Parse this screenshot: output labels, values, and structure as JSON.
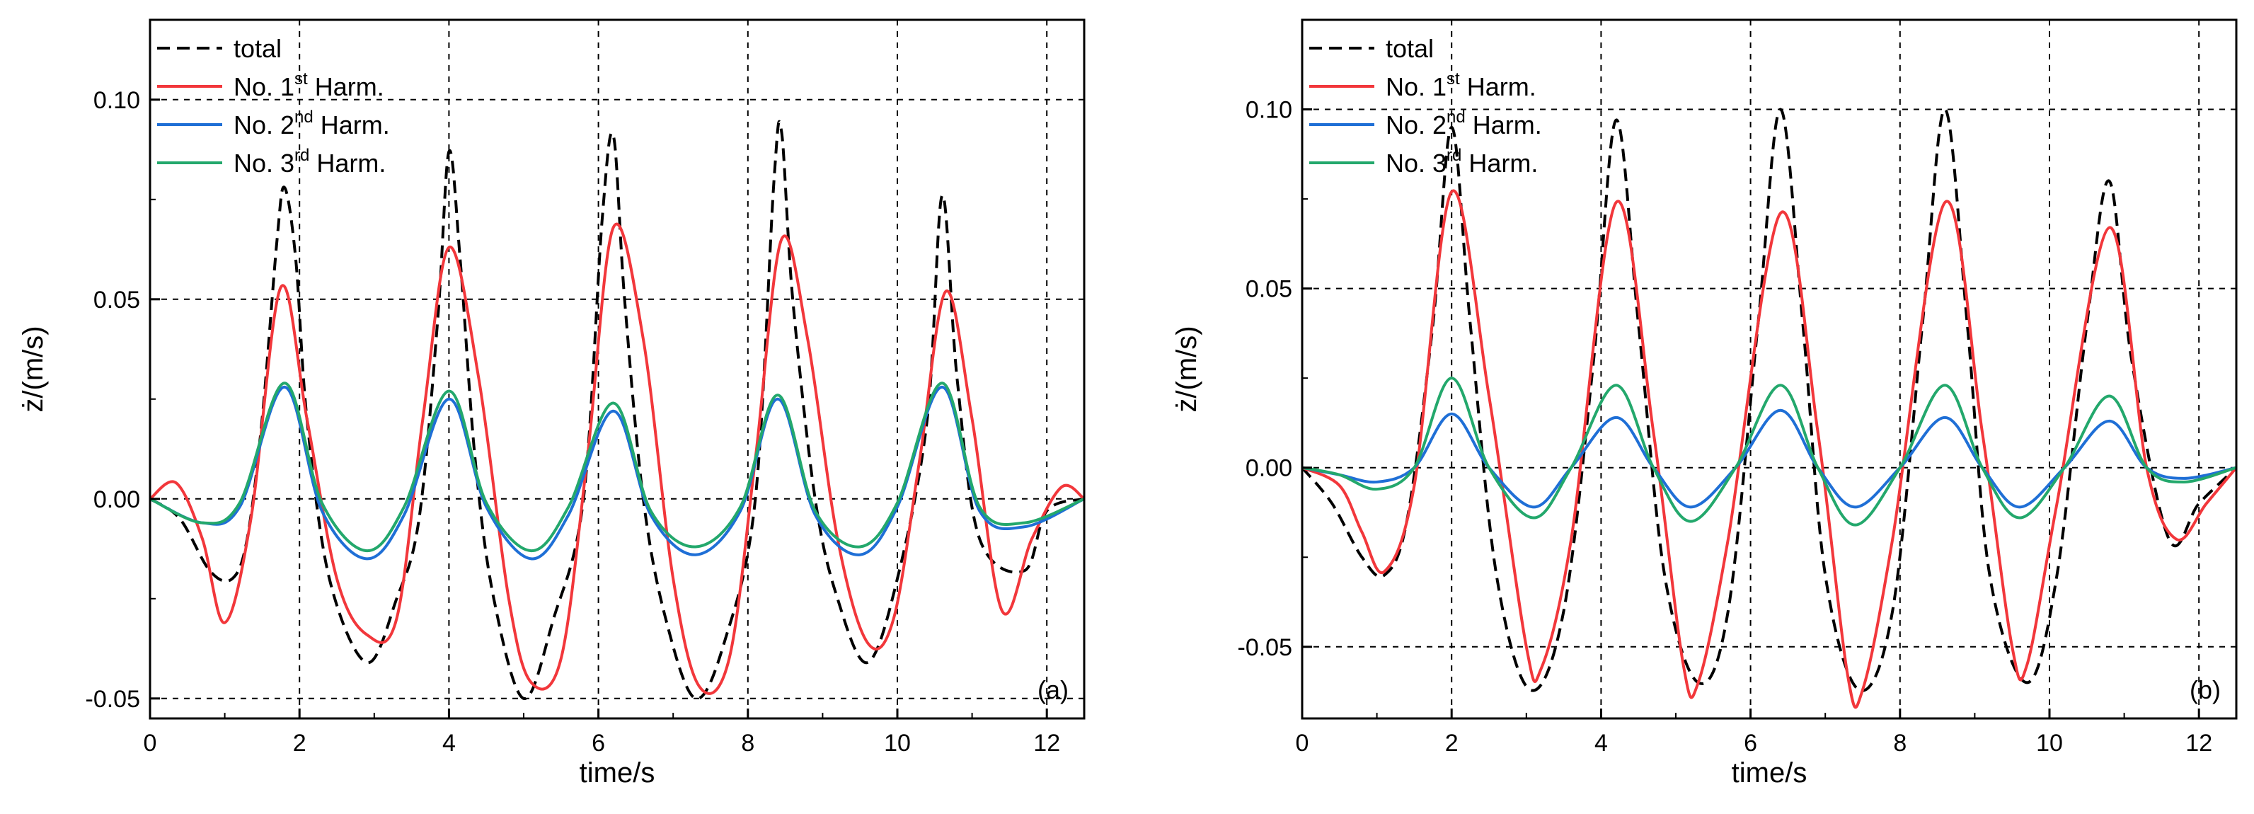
{
  "figure": {
    "description_free": true
  },
  "colors": {
    "total": "#000000",
    "harm1": "#f2373b",
    "harm2": "#1f6fd6",
    "harm3": "#23a86c",
    "grid": "#000000"
  },
  "legend": {
    "total": "total",
    "harm_prefix": "No. ",
    "harm1_num": "1",
    "harm1_sup": "st",
    "harm2_num": "2",
    "harm2_sup": "nd",
    "harm3_num": "3",
    "harm3_sup": "rd",
    "harm_suffix": " Harm."
  },
  "chart_data": [
    {
      "type": "line",
      "panel_label": "(a)",
      "xlabel": "time/s",
      "ylabel": "ż/(m/s)",
      "xlim": [
        0,
        12.5
      ],
      "ylim": [
        -0.055,
        0.12
      ],
      "xticks": [
        0,
        2,
        4,
        6,
        8,
        10,
        12
      ],
      "xtick_labels": [
        "0",
        "2",
        "4",
        "6",
        "8",
        "10",
        "12"
      ],
      "yticks": [
        -0.05,
        0.0,
        0.05,
        0.1
      ],
      "ytick_labels": [
        "-0.05",
        "0.00",
        "0.05",
        "0.10"
      ],
      "grid": true,
      "grid_x": [
        2,
        4,
        6,
        8,
        10,
        12
      ],
      "grid_y": [
        -0.05,
        0.0,
        0.05,
        0.1
      ],
      "series": [
        {
          "name": "total",
          "style": "dashed",
          "color_key": "total",
          "x": [
            0,
            0.4,
            0.8,
            1.1,
            1.3,
            1.5,
            1.7,
            1.8,
            1.95,
            2.1,
            2.4,
            2.9,
            3.3,
            3.6,
            3.85,
            4.0,
            4.15,
            4.35,
            4.6,
            5.0,
            5.4,
            5.8,
            6.05,
            6.2,
            6.35,
            6.6,
            6.9,
            7.3,
            7.7,
            8.1,
            8.35,
            8.45,
            8.6,
            8.9,
            9.2,
            9.6,
            10.0,
            10.4,
            10.6,
            10.8,
            11.1,
            11.7,
            12.0,
            12.5
          ],
          "y": [
            0,
            -0.005,
            -0.018,
            -0.02,
            -0.01,
            0.02,
            0.065,
            0.078,
            0.06,
            0.02,
            -0.02,
            -0.041,
            -0.025,
            -0.005,
            0.045,
            0.087,
            0.06,
            0.01,
            -0.025,
            -0.05,
            -0.03,
            0.0,
            0.07,
            0.091,
            0.05,
            0.0,
            -0.03,
            -0.05,
            -0.035,
            0.0,
            0.08,
            0.092,
            0.05,
            0.0,
            -0.025,
            -0.041,
            -0.02,
            0.02,
            0.076,
            0.03,
            -0.01,
            -0.018,
            -0.003,
            0
          ]
        },
        {
          "name": "No. 1st Harm.",
          "style": "solid",
          "color_key": "harm1",
          "x": [
            0,
            0.35,
            0.7,
            1.0,
            1.35,
            1.75,
            2.1,
            2.5,
            2.9,
            3.3,
            3.65,
            4.0,
            4.4,
            4.8,
            5.1,
            5.5,
            5.85,
            6.2,
            6.6,
            7.0,
            7.35,
            7.75,
            8.1,
            8.45,
            8.8,
            9.2,
            9.6,
            9.95,
            10.3,
            10.65,
            11.0,
            11.4,
            11.8,
            12.2,
            12.5
          ],
          "y": [
            0,
            0.004,
            -0.01,
            -0.031,
            -0.005,
            0.053,
            0.02,
            -0.02,
            -0.034,
            -0.03,
            0.02,
            0.063,
            0.03,
            -0.025,
            -0.046,
            -0.04,
            0.01,
            0.068,
            0.04,
            -0.02,
            -0.047,
            -0.04,
            0.01,
            0.065,
            0.04,
            -0.01,
            -0.036,
            -0.03,
            0.01,
            0.052,
            0.02,
            -0.028,
            -0.01,
            0.003,
            0
          ]
        },
        {
          "name": "No. 2nd Harm.",
          "style": "solid",
          "color_key": "harm2",
          "x": [
            0,
            0.7,
            1.2,
            1.8,
            2.3,
            2.9,
            3.4,
            4.0,
            4.5,
            5.1,
            5.6,
            6.2,
            6.7,
            7.3,
            7.9,
            8.4,
            8.9,
            9.5,
            10.0,
            10.6,
            11.1,
            11.7,
            12.5
          ],
          "y": [
            0,
            -0.006,
            -0.002,
            0.028,
            -0.003,
            -0.015,
            -0.004,
            0.025,
            -0.002,
            -0.015,
            -0.004,
            0.022,
            -0.004,
            -0.014,
            -0.003,
            0.025,
            -0.004,
            -0.014,
            -0.002,
            0.028,
            -0.003,
            -0.007,
            0
          ]
        },
        {
          "name": "No. 3rd Harm.",
          "style": "solid",
          "color_key": "harm3",
          "x": [
            0,
            0.7,
            1.2,
            1.8,
            2.3,
            2.9,
            3.4,
            4.0,
            4.5,
            5.1,
            5.6,
            6.2,
            6.7,
            7.3,
            7.9,
            8.4,
            8.9,
            9.5,
            10.0,
            10.6,
            11.1,
            11.7,
            12.5
          ],
          "y": [
            0,
            -0.006,
            -0.001,
            0.029,
            -0.001,
            -0.013,
            -0.002,
            0.027,
            -0.001,
            -0.013,
            -0.002,
            0.024,
            -0.003,
            -0.012,
            -0.002,
            0.026,
            -0.003,
            -0.012,
            -0.001,
            0.029,
            -0.002,
            -0.006,
            0
          ]
        }
      ]
    },
    {
      "type": "line",
      "panel_label": "(b)",
      "xlabel": "time/s",
      "ylabel": "ż/(m/s)",
      "xlim": [
        0,
        12.5
      ],
      "ylim": [
        -0.07,
        0.125
      ],
      "xticks": [
        0,
        2,
        4,
        6,
        8,
        10,
        12
      ],
      "xtick_labels": [
        "0",
        "2",
        "4",
        "6",
        "8",
        "10",
        "12"
      ],
      "yticks": [
        -0.05,
        0.0,
        0.05,
        0.1
      ],
      "ytick_labels": [
        "-0.05",
        "0.00",
        "0.05",
        "0.10"
      ],
      "grid": true,
      "grid_x": [
        2,
        4,
        6,
        8,
        10,
        12
      ],
      "grid_y": [
        -0.05,
        0.0,
        0.05,
        0.1
      ],
      "series": [
        {
          "name": "total",
          "style": "dashed",
          "color_key": "total",
          "x": [
            0,
            0.4,
            0.8,
            1.1,
            1.4,
            1.75,
            2.0,
            2.25,
            2.6,
            3.05,
            3.5,
            3.9,
            4.2,
            4.5,
            4.85,
            5.3,
            5.7,
            6.1,
            6.4,
            6.7,
            7.0,
            7.45,
            7.9,
            8.3,
            8.6,
            8.9,
            9.2,
            9.7,
            10.1,
            10.5,
            10.8,
            11.1,
            11.6,
            12.0,
            12.5
          ],
          "y": [
            0,
            -0.01,
            -0.025,
            -0.03,
            -0.015,
            0.04,
            0.095,
            0.04,
            -0.03,
            -0.062,
            -0.04,
            0.03,
            0.097,
            0.04,
            -0.03,
            -0.06,
            -0.04,
            0.04,
            0.1,
            0.04,
            -0.03,
            -0.062,
            -0.04,
            0.04,
            0.1,
            0.04,
            -0.03,
            -0.06,
            -0.03,
            0.04,
            0.08,
            0.03,
            -0.02,
            -0.01,
            0
          ]
        },
        {
          "name": "No. 1st Harm.",
          "style": "solid",
          "color_key": "harm1",
          "x": [
            0,
            0.5,
            0.8,
            1.1,
            1.5,
            2.0,
            2.5,
            3.0,
            3.2,
            3.6,
            4.2,
            4.7,
            5.1,
            5.3,
            5.7,
            6.4,
            6.9,
            7.3,
            7.5,
            7.9,
            8.6,
            9.1,
            9.5,
            9.7,
            10.1,
            10.8,
            11.3,
            11.7,
            12.1,
            12.5
          ],
          "y": [
            0,
            -0.005,
            -0.018,
            -0.029,
            -0.005,
            0.077,
            0.02,
            -0.05,
            -0.056,
            -0.02,
            0.074,
            0.01,
            -0.055,
            -0.06,
            -0.02,
            0.071,
            0.01,
            -0.058,
            -0.062,
            -0.02,
            0.074,
            0.01,
            -0.05,
            -0.055,
            -0.01,
            0.067,
            0.0,
            -0.02,
            -0.01,
            0
          ]
        },
        {
          "name": "No. 2nd Harm.",
          "style": "solid",
          "color_key": "harm2",
          "x": [
            0,
            0.5,
            1.0,
            1.5,
            2.0,
            2.5,
            3.1,
            3.6,
            4.2,
            4.7,
            5.2,
            5.8,
            6.4,
            6.9,
            7.4,
            8.0,
            8.6,
            9.1,
            9.6,
            10.2,
            10.8,
            11.3,
            11.8,
            12.5
          ],
          "y": [
            0,
            -0.002,
            -0.004,
            0.0,
            0.015,
            0.0,
            -0.011,
            0.0,
            0.014,
            0.0,
            -0.011,
            0.0,
            0.016,
            0.0,
            -0.011,
            0.0,
            0.014,
            0.0,
            -0.011,
            0.0,
            0.013,
            0.0,
            -0.003,
            0
          ]
        },
        {
          "name": "No. 3rd Harm.",
          "style": "solid",
          "color_key": "harm3",
          "x": [
            0,
            0.5,
            1.0,
            1.5,
            2.0,
            2.5,
            3.1,
            3.6,
            4.2,
            4.7,
            5.2,
            5.8,
            6.4,
            6.9,
            7.4,
            8.0,
            8.6,
            9.1,
            9.6,
            10.2,
            10.8,
            11.3,
            11.8,
            12.5
          ],
          "y": [
            0,
            -0.002,
            -0.006,
            0.0,
            0.025,
            0.0,
            -0.014,
            0.0,
            0.023,
            0.0,
            -0.015,
            0.0,
            0.023,
            0.0,
            -0.016,
            0.0,
            0.023,
            0.0,
            -0.014,
            0.0,
            0.02,
            0.0,
            -0.004,
            0
          ]
        }
      ]
    }
  ]
}
